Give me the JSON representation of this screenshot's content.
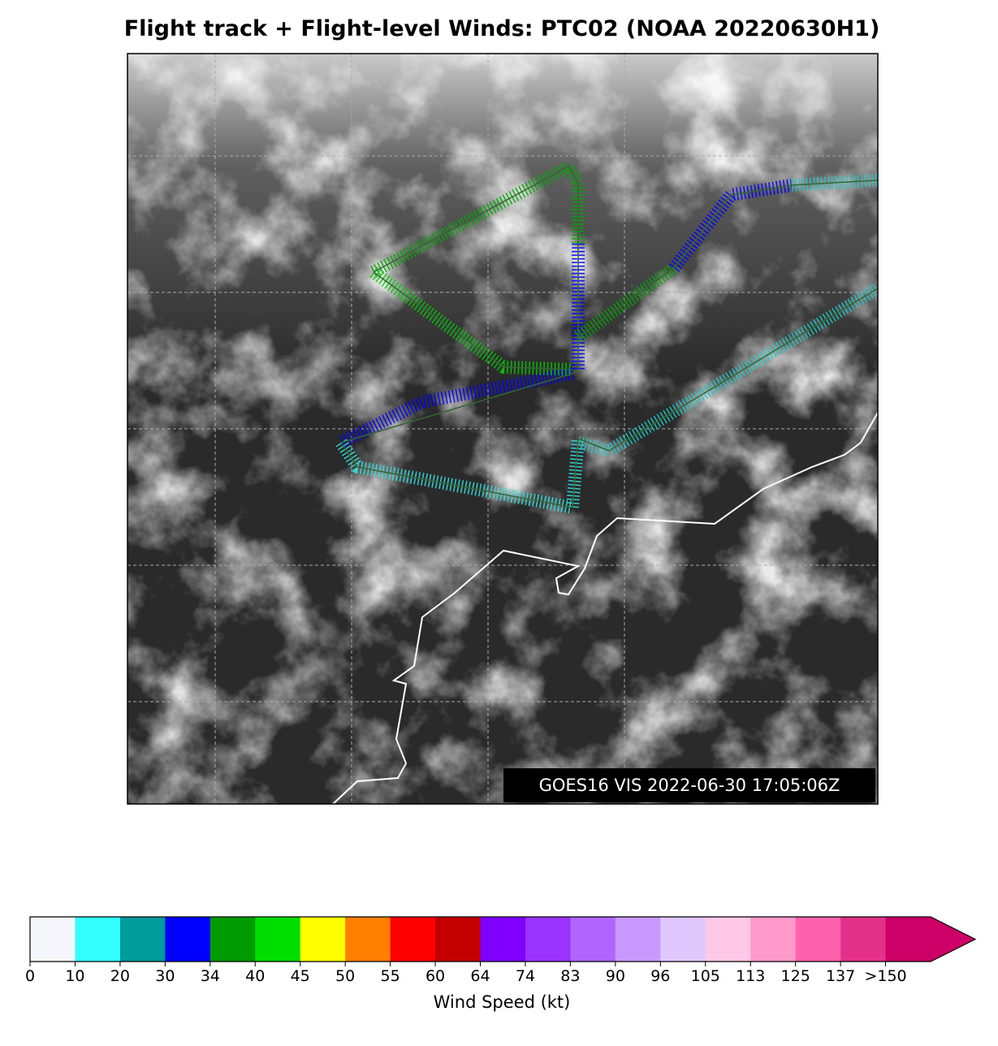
{
  "title": "Flight track + Flight-level Winds: PTC02 (NOAA 20220630H1)",
  "annotation": "GOES16 VIS 2022-06-30 17:05:06Z",
  "colorbar": {
    "label": "Wind Speed (kt)",
    "ticks": [
      0,
      10,
      20,
      30,
      34,
      40,
      45,
      50,
      55,
      60,
      64,
      74,
      83,
      90,
      96,
      105,
      113,
      125,
      137,
      {
        "value": 150,
        "label": ">150"
      }
    ],
    "colors": [
      "#f5f7fc",
      "#33ffff",
      "#009b9b",
      "#0000ff",
      "#009b00",
      "#00dd00",
      "#ffff00",
      "#ff7f00",
      "#ff0000",
      "#c40000",
      "#8000ff",
      "#9933ff",
      "#b066ff",
      "#c999ff",
      "#e0c8ff",
      "#ffc8e6",
      "#ff9acb",
      "#ff62ad",
      "#e3318a",
      "#cc0066"
    ]
  }
}
